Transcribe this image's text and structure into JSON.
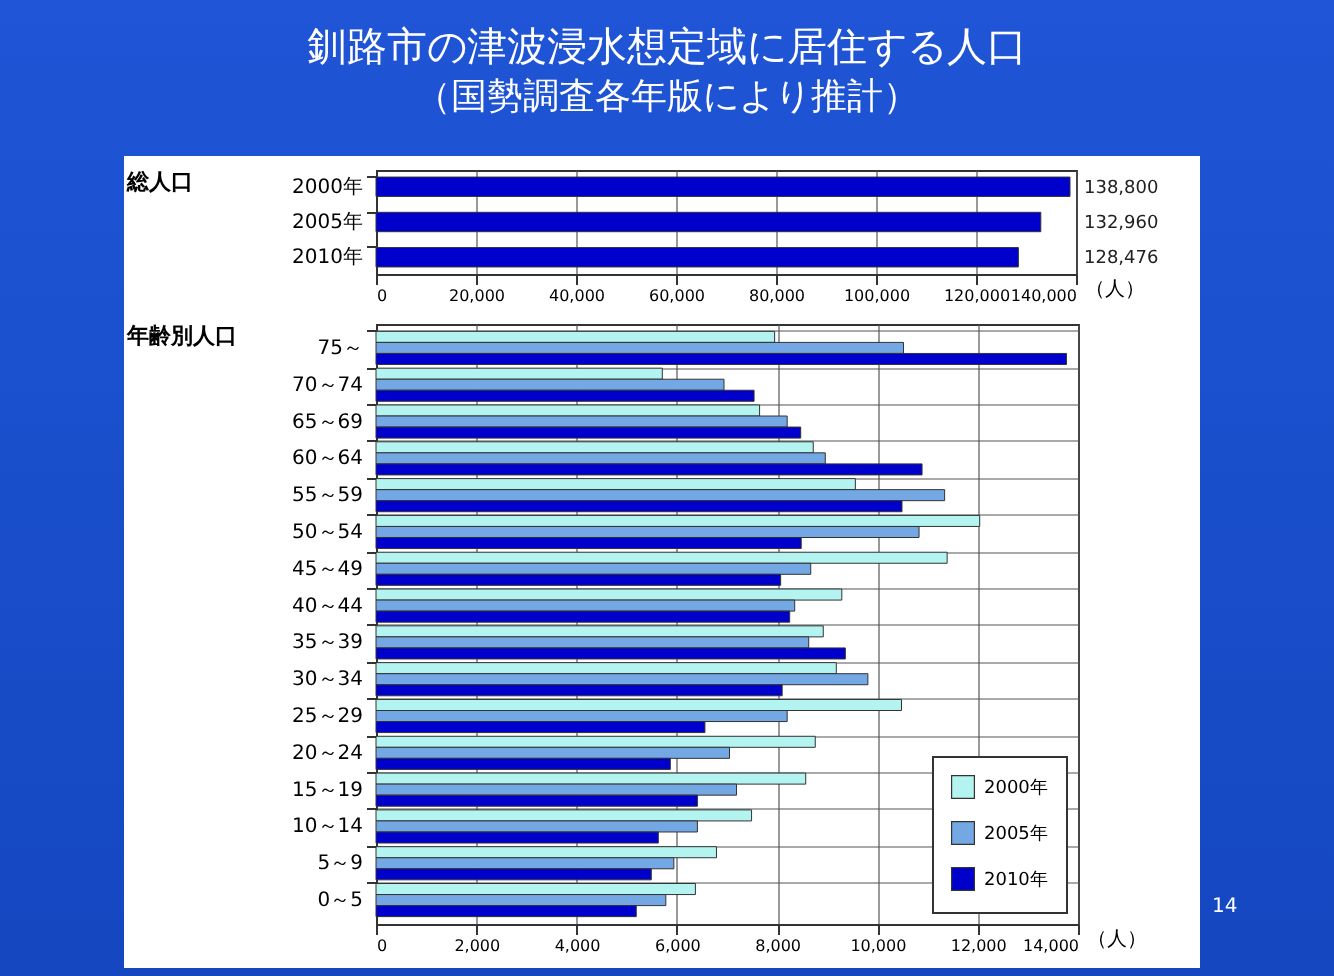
{
  "chart_data": [
    {
      "type": "bar",
      "orientation": "horizontal",
      "title": "釧路市の津波浸水想定域に居住する人口",
      "subtitle": "（国勢調査各年版により推計）",
      "ylabel": "総人口",
      "xlabel": "（人）",
      "categories": [
        "2000年",
        "2005年",
        "2010年"
      ],
      "values": [
        138800,
        132960,
        128476
      ],
      "color": "#0000cc",
      "value_labels": [
        "138,800",
        "132,960",
        "128,476"
      ],
      "xlim": [
        0,
        140000
      ],
      "xticks": [
        0,
        {
          "value": 20000,
          "label": "20,000"
        },
        {
          "value": 40000,
          "label": "40,000"
        },
        {
          "value": 60000,
          "label": "60,000"
        },
        {
          "value": 80000,
          "label": "80,000"
        },
        {
          "value": 100000,
          "label": "100,000"
        },
        {
          "value": 120000,
          "label": "120,000"
        },
        {
          "value": 140000,
          "label": "140,000"
        }
      ],
      "grid": "x"
    },
    {
      "type": "bar",
      "orientation": "horizontal",
      "ylabel": "年齢別人口",
      "xlabel": "（人）",
      "annotations": [
        "14"
      ],
      "categories": [
        "75～",
        "70～74",
        "65～69",
        "60～64",
        "55～59",
        "50～54",
        "45～49",
        "40～44",
        "35～39",
        "30～34",
        "25～29",
        "20～24",
        "15～19",
        "10～14",
        "5～9",
        "0～5"
      ],
      "series": [
        {
          "name": "2000年",
          "color": "#b4f4f0",
          "values": [
            7950,
            5710,
            7650,
            8720,
            9560,
            12040,
            11390,
            9290,
            8920,
            9180,
            10480,
            8760,
            8570,
            7490,
            6790,
            6370
          ]
        },
        {
          "name": "2005年",
          "color": "#74a8e4",
          "values": [
            10520,
            6940,
            8200,
            8960,
            11340,
            10830,
            8670,
            8350,
            8630,
            9810,
            8200,
            7050,
            7190,
            6410,
            5940,
            5780
          ]
        },
        {
          "name": "2010年",
          "color": "#0000cc",
          "values": [
            13770,
            7540,
            8470,
            10890,
            10490,
            8480,
            8070,
            8250,
            9360,
            8100,
            6560,
            5870,
            6410,
            5630,
            5490,
            5190
          ]
        }
      ],
      "legend": "bottom right",
      "xlim": [
        0,
        14000
      ],
      "xticks": [
        0,
        {
          "value": 2000,
          "label": "2,000"
        },
        {
          "value": 4000,
          "label": "4,000"
        },
        {
          "value": 6000,
          "label": "6,000"
        },
        {
          "value": 8000,
          "label": "8,000"
        },
        {
          "value": 10000,
          "label": "10,000"
        },
        {
          "value": 12000,
          "label": "12,000"
        },
        {
          "value": 14000,
          "label": "14,000"
        }
      ],
      "grid": true
    }
  ]
}
